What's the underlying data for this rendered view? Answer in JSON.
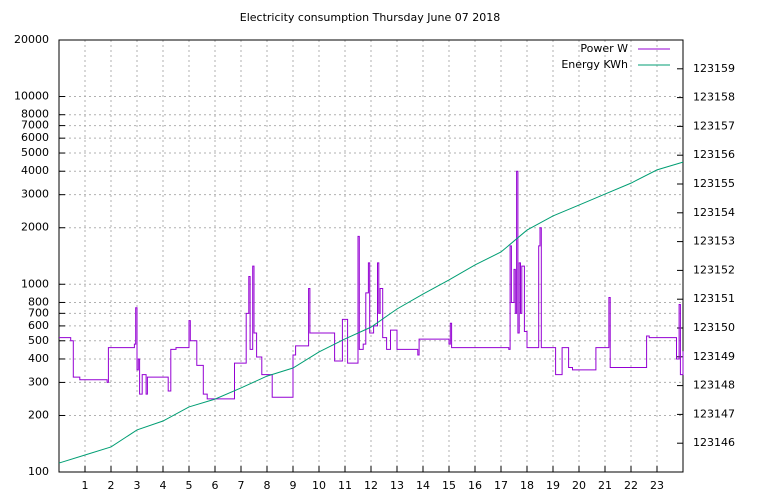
{
  "chart_data": {
    "type": "line",
    "title": "Electricity consumption Thursday June 07 2018",
    "log_y": true,
    "grid": true,
    "style": "steps",
    "legend": "top-right",
    "xlim": [
      0,
      24
    ],
    "xticks": [
      1,
      2,
      3,
      4,
      5,
      6,
      7,
      8,
      9,
      10,
      11,
      12,
      13,
      14,
      15,
      16,
      17,
      18,
      19,
      20,
      21,
      22,
      23
    ],
    "ylim": [
      100,
      20000
    ],
    "yticks": [
      100,
      200,
      300,
      400,
      500,
      600,
      700,
      800,
      1000,
      2000,
      3000,
      4000,
      5000,
      6000,
      7000,
      8000,
      10000,
      20000
    ],
    "y2lim": [
      123145,
      123160
    ],
    "y2ticks": [
      123146,
      123147,
      123148,
      123149,
      123150,
      123151,
      123152,
      123153,
      123154,
      123155,
      123156,
      123157,
      123158,
      123159
    ],
    "series": [
      {
        "name": "Power W",
        "color": "#9400d3",
        "x": [
          0,
          0.45,
          0.55,
          0.8,
          1.85,
          1.9,
          2.9,
          2.95,
          3.0,
          3.05,
          3.1,
          3.2,
          3.35,
          3.4,
          4.2,
          4.3,
          4.5,
          5.0,
          5.05,
          5.3,
          5.55,
          5.7,
          6.75,
          7.2,
          7.3,
          7.35,
          7.45,
          7.5,
          7.6,
          7.8,
          8.2,
          9.0,
          9.1,
          9.6,
          9.65,
          10.6,
          10.9,
          11.1,
          11.5,
          11.55,
          11.7,
          11.8,
          11.9,
          11.95,
          12.1,
          12.25,
          12.3,
          12.35,
          12.45,
          12.6,
          12.75,
          13.0,
          13.8,
          13.85,
          15.0,
          15.05,
          15.1,
          17.3,
          17.35,
          17.4,
          17.5,
          17.55,
          17.6,
          17.65,
          17.7,
          17.75,
          17.8,
          17.9,
          18.0,
          18.45,
          18.5,
          18.55,
          19.1,
          19.35,
          19.6,
          19.75,
          20.65,
          21.15,
          21.2,
          22.6,
          22.7,
          23.75,
          23.85,
          23.9,
          24.0
        ],
        "values": [
          520,
          500,
          320,
          310,
          300,
          460,
          480,
          750,
          350,
          400,
          260,
          330,
          260,
          320,
          270,
          450,
          460,
          640,
          500,
          370,
          260,
          245,
          380,
          700,
          1100,
          450,
          1250,
          550,
          410,
          330,
          250,
          420,
          470,
          950,
          550,
          390,
          650,
          380,
          1800,
          450,
          480,
          900,
          1300,
          550,
          600,
          1300,
          700,
          950,
          520,
          450,
          570,
          450,
          420,
          510,
          480,
          620,
          460,
          450,
          1600,
          800,
          1200,
          700,
          4000,
          550,
          1300,
          700,
          1250,
          560,
          460,
          1600,
          2000,
          460,
          330,
          460,
          360,
          350,
          460,
          850,
          360,
          530,
          520,
          400,
          780,
          330,
          440
        ]
      },
      {
        "name": "Energy KWh",
        "color": "#009e73",
        "axis": "y2",
        "x": [
          0,
          1,
          2,
          3,
          4,
          5,
          6,
          7,
          8,
          9,
          10,
          11,
          12,
          13,
          14,
          15,
          16,
          17,
          18,
          19,
          20,
          21,
          22,
          23,
          24
        ],
        "values": [
          123145.31,
          123145.59,
          123145.87,
          123146.46,
          123146.77,
          123147.26,
          123147.53,
          123147.92,
          123148.33,
          123148.61,
          123149.17,
          123149.62,
          123150.03,
          123150.66,
          123151.18,
          123151.67,
          123152.19,
          123152.64,
          123153.4,
          123153.89,
          123154.27,
          123154.65,
          123155.03,
          123155.49,
          123155.76
        ]
      }
    ]
  }
}
